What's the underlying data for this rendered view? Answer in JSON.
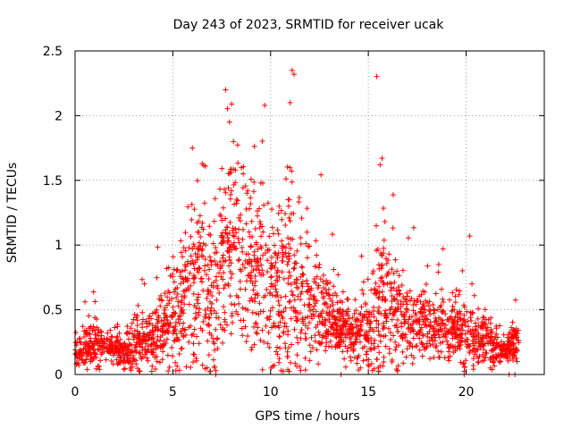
{
  "chart_data": {
    "type": "scatter",
    "title": "Day 243 of 2023, SRMTID for receiver ucak",
    "xlabel": "GPS time / hours",
    "ylabel": "SRMTID / TECUs",
    "xlim": [
      0,
      24
    ],
    "ylim": [
      0,
      2.5
    ],
    "xticks": [
      0,
      5,
      10,
      15,
      20
    ],
    "xtick_labels": [
      "0",
      "5",
      "10",
      "15",
      "20"
    ],
    "yticks": [
      0,
      0.5,
      1,
      1.5,
      2,
      2.5
    ],
    "ytick_labels": [
      "0",
      "0.5",
      "1",
      "1.5",
      "2",
      "2.5"
    ],
    "grid": true,
    "marker": "+",
    "series_color": "#ff0000",
    "envelope": {
      "hours": [
        0,
        0.5,
        1,
        1.5,
        2,
        2.5,
        3,
        3.5,
        4,
        4.5,
        5,
        5.5,
        6,
        6.5,
        7,
        7.5,
        8,
        8.5,
        9,
        9.5,
        10,
        10.5,
        11,
        11.5,
        12,
        12.5,
        13,
        13.5,
        14,
        14.5,
        15,
        15.5,
        16,
        16.5,
        17,
        17.5,
        18,
        18.5,
        19,
        19.5,
        20,
        20.5,
        21,
        21.5,
        22,
        22.5
      ],
      "mean": [
        0.15,
        0.2,
        0.22,
        0.2,
        0.2,
        0.18,
        0.22,
        0.28,
        0.3,
        0.35,
        0.42,
        0.55,
        0.65,
        0.7,
        0.55,
        0.75,
        0.95,
        0.9,
        0.8,
        0.75,
        0.7,
        0.7,
        0.75,
        0.6,
        0.55,
        0.5,
        0.45,
        0.35,
        0.3,
        0.32,
        0.35,
        0.5,
        0.55,
        0.45,
        0.42,
        0.4,
        0.4,
        0.38,
        0.35,
        0.32,
        0.3,
        0.28,
        0.25,
        0.2,
        0.18,
        0.25
      ],
      "spread": [
        0.1,
        0.15,
        0.15,
        0.12,
        0.12,
        0.12,
        0.18,
        0.2,
        0.2,
        0.25,
        0.35,
        0.45,
        0.6,
        0.65,
        0.5,
        0.7,
        0.65,
        0.6,
        0.55,
        0.55,
        0.6,
        0.65,
        0.7,
        0.55,
        0.45,
        0.35,
        0.3,
        0.2,
        0.2,
        0.22,
        0.3,
        0.55,
        0.45,
        0.35,
        0.25,
        0.22,
        0.25,
        0.25,
        0.22,
        0.2,
        0.25,
        0.2,
        0.18,
        0.12,
        0.08,
        0.15
      ]
    },
    "gaps_hours": [
      [
        22.8,
        24
      ]
    ],
    "peaks": [
      {
        "x": 7.7,
        "y": 2.2
      },
      {
        "x": 9.7,
        "y": 2.08
      },
      {
        "x": 11.1,
        "y": 2.35
      },
      {
        "x": 11.2,
        "y": 2.32
      },
      {
        "x": 11.0,
        "y": 2.1
      },
      {
        "x": 6.0,
        "y": 1.75
      },
      {
        "x": 15.7,
        "y": 1.67
      },
      {
        "x": 15.6,
        "y": 1.62
      },
      {
        "x": 7.9,
        "y": 1.95
      },
      {
        "x": 8.1,
        "y": 1.8
      },
      {
        "x": 6.5,
        "y": 1.63
      },
      {
        "x": 8.6,
        "y": 1.55
      },
      {
        "x": 8.2,
        "y": 1.58
      },
      {
        "x": 9.6,
        "y": 1.48
      },
      {
        "x": 10.9,
        "y": 1.35
      },
      {
        "x": 18.6,
        "y": 0.85
      },
      {
        "x": 20.3,
        "y": 0.7
      }
    ],
    "zero_points_hours": [
      7.2,
      13.6,
      19.9,
      22.2,
      22.5
    ],
    "point_count": 2400
  }
}
